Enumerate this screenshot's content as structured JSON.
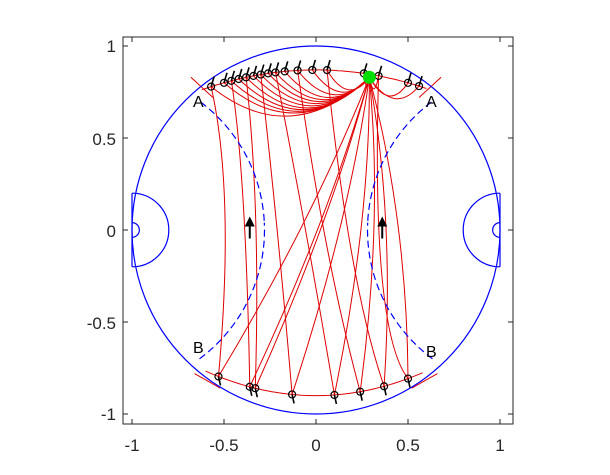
{
  "chart_data": {
    "type": "line",
    "title": "",
    "xlabel": "",
    "ylabel": "",
    "xlim": [
      -1.05,
      1.05
    ],
    "ylim": [
      -1.05,
      1.05
    ],
    "xticks": [
      -1,
      -0.5,
      0,
      0.5,
      1
    ],
    "yticks": [
      -1,
      -0.5,
      0,
      0.5,
      1
    ],
    "xtick_labels": [
      "-1",
      "-0.5",
      "0",
      "0.5",
      "1"
    ],
    "ytick_labels": [
      "-1",
      "-0.5",
      "0",
      "0.5",
      "1"
    ],
    "grid": false,
    "legend": "none",
    "colors": {
      "boundary": "#0000ff",
      "geodesics": "#e00000",
      "endpoint_marker": "#000000",
      "source_marker": "#00dd00"
    },
    "boundary_circle": {
      "center": [
        0,
        0
      ],
      "radius": 1
    },
    "side_arcs": [
      {
        "center": [
          -1,
          0
        ],
        "radius": 0.2
      },
      {
        "center": [
          1,
          0
        ],
        "radius": 0.2
      },
      {
        "center": [
          -1,
          0
        ],
        "radius": 0.04
      },
      {
        "center": [
          1,
          0
        ],
        "radius": 0.04
      }
    ],
    "inner_arcs": [
      {
        "center": [
          -1.15,
          0
        ],
        "radius": 0.87,
        "y_range": [
          -0.7,
          0.7
        ],
        "style": "dashed-lower"
      },
      {
        "center": [
          1.15,
          0
        ],
        "radius": 0.87,
        "y_range": [
          -0.7,
          0.7
        ],
        "style": "dashed-lower"
      }
    ],
    "arrows": [
      {
        "x": -0.36,
        "y": 0.03,
        "dir": "up"
      },
      {
        "x": 0.36,
        "y": 0.03,
        "dir": "up"
      }
    ],
    "source_point": [
      0.29,
      0.83
    ],
    "top_endpoints_x": [
      -0.57,
      -0.5,
      -0.46,
      -0.42,
      -0.38,
      -0.34,
      -0.3,
      -0.26,
      -0.22,
      -0.17,
      -0.1,
      -0.02,
      0.06,
      0.26,
      0.34,
      0.5,
      0.56
    ],
    "bottom_endpoints_x": [
      -0.53,
      -0.36,
      -0.33,
      -0.13,
      0.1,
      0.24,
      0.37,
      0.5
    ],
    "bottom_sources_x": [
      -0.53,
      -0.36,
      -0.33,
      -0.13,
      0.1,
      0.24,
      0.37,
      0.5
    ],
    "corner_labels": [
      {
        "text": "A",
        "x": -0.64,
        "y": 0.7
      },
      {
        "text": "A",
        "x": 0.64,
        "y": 0.7
      },
      {
        "text": "B",
        "x": -0.64,
        "y": -0.66
      },
      {
        "text": "B",
        "x": 0.64,
        "y": -0.68
      }
    ]
  }
}
